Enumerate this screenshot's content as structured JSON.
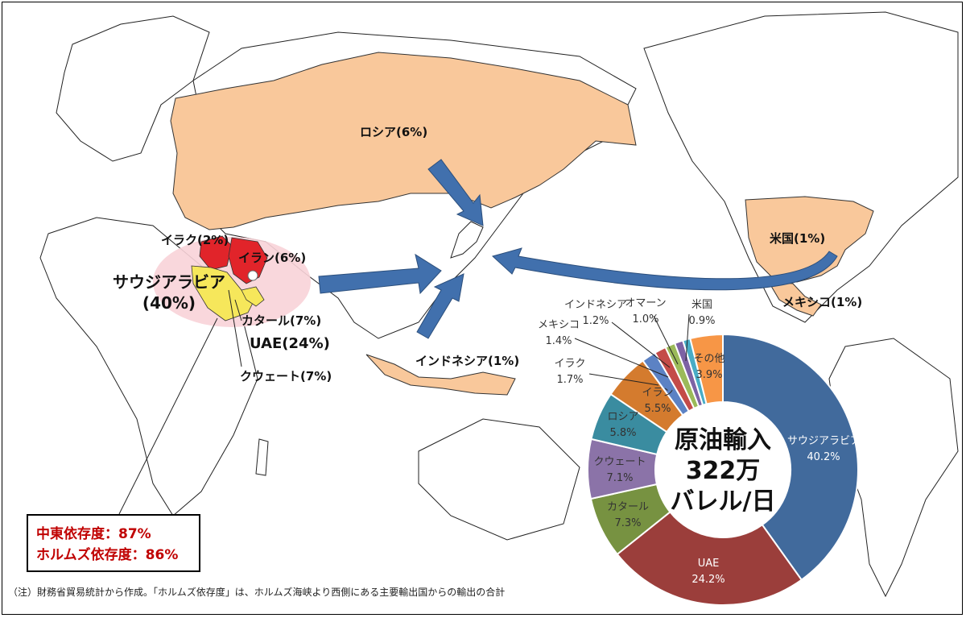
{
  "map_labels": {
    "russia": "ロシア(6%)",
    "iraq": "イラク(2%)",
    "iran": "イラン(6%)",
    "saudi_line1": "サウジアラビア",
    "saudi_line2": "(40%)",
    "qatar": "カタール(7%)",
    "uae": "UAE(24%)",
    "kuwait": "クウェート(7%)",
    "indonesia": "インドネシア(1%)",
    "usa": "米国(1%)",
    "mexico": "メキシコ(1%)"
  },
  "chart_data": {
    "type": "pie",
    "title_line1": "原油輸入",
    "title_line2": "322万",
    "title_line3": "バレル/日",
    "slices": [
      {
        "name": "サウジアラビア",
        "value": 40.2,
        "label": "40.2%",
        "color": "#416a9c"
      },
      {
        "name": "UAE",
        "value": 24.2,
        "label": "24.2%",
        "color": "#9b3e3b"
      },
      {
        "name": "カタール",
        "value": 7.3,
        "label": "7.3%",
        "color": "#779241"
      },
      {
        "name": "クウェート",
        "value": 7.1,
        "label": "7.1%",
        "color": "#8b73a8"
      },
      {
        "name": "ロシア",
        "value": 5.8,
        "label": "5.8%",
        "color": "#3a8ca0"
      },
      {
        "name": "イラン",
        "value": 5.5,
        "label": "5.5%",
        "color": "#d47b2e"
      },
      {
        "name": "イラク",
        "value": 1.7,
        "label": "1.7%",
        "color": "#5c82c4"
      },
      {
        "name": "メキシコ",
        "value": 1.4,
        "label": "1.4%",
        "color": "#c44b48"
      },
      {
        "name": "インドネシア",
        "value": 1.2,
        "label": "1.2%",
        "color": "#9bba59"
      },
      {
        "name": "オマーン",
        "value": 1.0,
        "label": "1.0%",
        "color": "#7d62a4"
      },
      {
        "name": "米国",
        "value": 0.9,
        "label": "0.9%",
        "color": "#48acc6"
      },
      {
        "name": "その他",
        "value": 3.9,
        "label": "3.9%",
        "color": "#f79646"
      }
    ]
  },
  "dependency": {
    "middle_east": "中東依存度：87%",
    "hormuz": "ホルムズ依存度：86%"
  },
  "footnote": "（注）財務省貿易統計から作成。「ホルムズ依存度」は、ホルムズ海峡より西側にある主要輸出国からの輸出の合計",
  "colors": {
    "highlight_country": "#f9c89b",
    "middle_east_zone": "#f8d3d8",
    "iraq_iran": "#e1242a",
    "saudi": "#f6e75b",
    "arrow": "#4170ad",
    "dependency_text": "#c00000"
  }
}
